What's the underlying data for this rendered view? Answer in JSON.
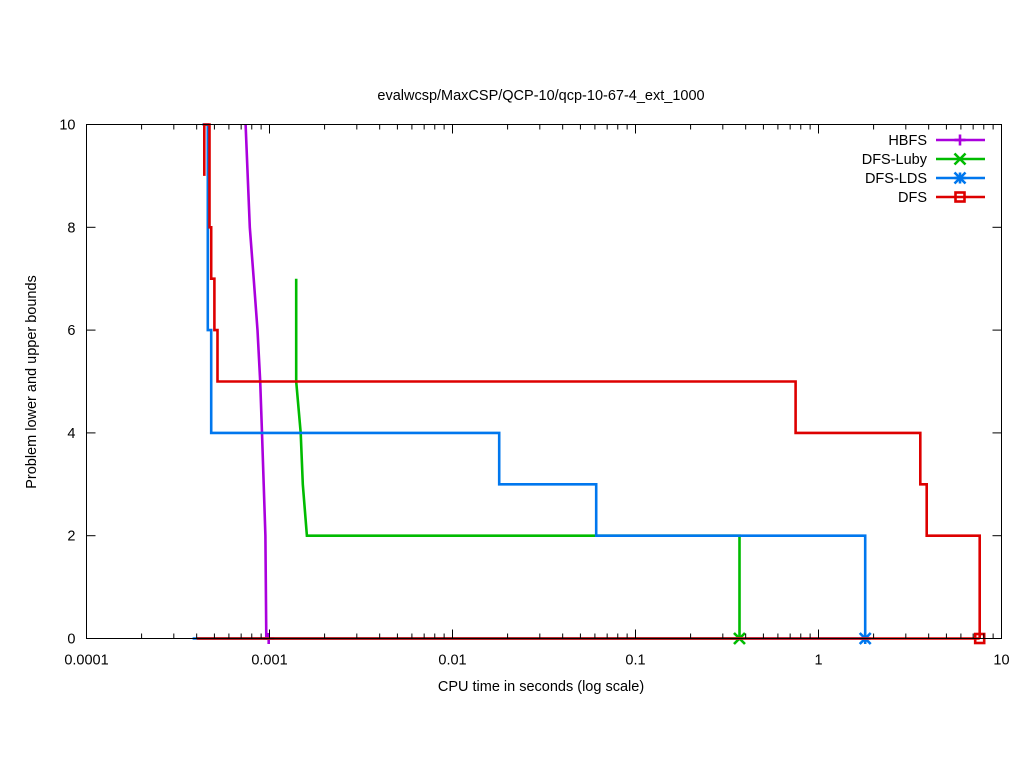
{
  "chart_data": {
    "type": "line",
    "title": "evalwcsp/MaxCSP/QCP-10/qcp-10-67-4_ext_1000",
    "xlabel": "CPU time in seconds (log scale)",
    "ylabel": "Problem lower and upper bounds",
    "x_scale": "log",
    "xlim": [
      0.0001,
      10
    ],
    "ylim": [
      0,
      10
    ],
    "x_ticks": [
      {
        "value": 0.0001,
        "label": "0.0001"
      },
      {
        "value": 0.001,
        "label": "0.001"
      },
      {
        "value": 0.01,
        "label": "0.01"
      },
      {
        "value": 0.1,
        "label": "0.1"
      },
      {
        "value": 1,
        "label": "1"
      },
      {
        "value": 10,
        "label": "10"
      }
    ],
    "y_ticks": [
      {
        "value": 0,
        "label": "0"
      },
      {
        "value": 2,
        "label": "2"
      },
      {
        "value": 4,
        "label": "4"
      },
      {
        "value": 6,
        "label": "6"
      },
      {
        "value": 8,
        "label": "8"
      },
      {
        "value": 10,
        "label": "10"
      }
    ],
    "grid": false,
    "legend_position": "top-right",
    "series": [
      {
        "name": "HBFS",
        "color": "#aa00dd",
        "marker": "plus",
        "upper": [
          [
            0.00074,
            10
          ],
          [
            0.00078,
            8
          ],
          [
            0.00082,
            7
          ],
          [
            0.00086,
            6
          ],
          [
            0.00089,
            5
          ],
          [
            0.00091,
            4
          ],
          [
            0.00093,
            3
          ],
          [
            0.00095,
            2
          ],
          [
            0.00096,
            0
          ]
        ],
        "lower": [
          [
            0.00096,
            0
          ],
          [
            0.00099,
            0
          ]
        ],
        "end": [
          0.00099,
          0
        ]
      },
      {
        "name": "DFS-Luby",
        "color": "#00bb00",
        "marker": "x",
        "upper": [
          [
            0.0014,
            7
          ],
          [
            0.0014,
            5
          ],
          [
            0.00148,
            4
          ],
          [
            0.00152,
            3
          ],
          [
            0.0016,
            2
          ],
          [
            0.37,
            2
          ],
          [
            0.37,
            0
          ]
        ],
        "lower": [
          [
            0.0004,
            0
          ],
          [
            0.37,
            0
          ]
        ],
        "end": [
          0.37,
          0
        ]
      },
      {
        "name": "DFS-LDS",
        "color": "#0077ee",
        "marker": "star",
        "upper": [
          [
            0.00043,
            10
          ],
          [
            0.00046,
            10
          ],
          [
            0.00046,
            6
          ],
          [
            0.00048,
            6
          ],
          [
            0.00048,
            4
          ],
          [
            0.018,
            4
          ],
          [
            0.018,
            3
          ],
          [
            0.061,
            3
          ],
          [
            0.061,
            2
          ],
          [
            1.8,
            2
          ],
          [
            1.8,
            0
          ]
        ],
        "lower": [
          [
            0.00038,
            0
          ],
          [
            1.8,
            0
          ]
        ],
        "end": [
          1.8,
          0
        ]
      },
      {
        "name": "DFS",
        "color": "#dd0000",
        "marker": "square",
        "upper": [
          [
            0.00044,
            10
          ],
          [
            0.00044,
            9
          ],
          [
            0.00044,
            10
          ],
          [
            0.00047,
            10
          ],
          [
            0.00047,
            8
          ],
          [
            0.00048,
            8
          ],
          [
            0.00048,
            7
          ],
          [
            0.0005,
            7
          ],
          [
            0.0005,
            6
          ],
          [
            0.00052,
            6
          ],
          [
            0.00052,
            5
          ],
          [
            0.75,
            5
          ],
          [
            0.75,
            4
          ],
          [
            3.6,
            4
          ],
          [
            3.6,
            3
          ],
          [
            3.9,
            3
          ],
          [
            3.9,
            2
          ],
          [
            7.6,
            2
          ],
          [
            7.6,
            0
          ]
        ],
        "lower": [
          [
            0.0004,
            0
          ],
          [
            7.6,
            0
          ]
        ],
        "end": [
          7.6,
          0
        ]
      }
    ]
  }
}
